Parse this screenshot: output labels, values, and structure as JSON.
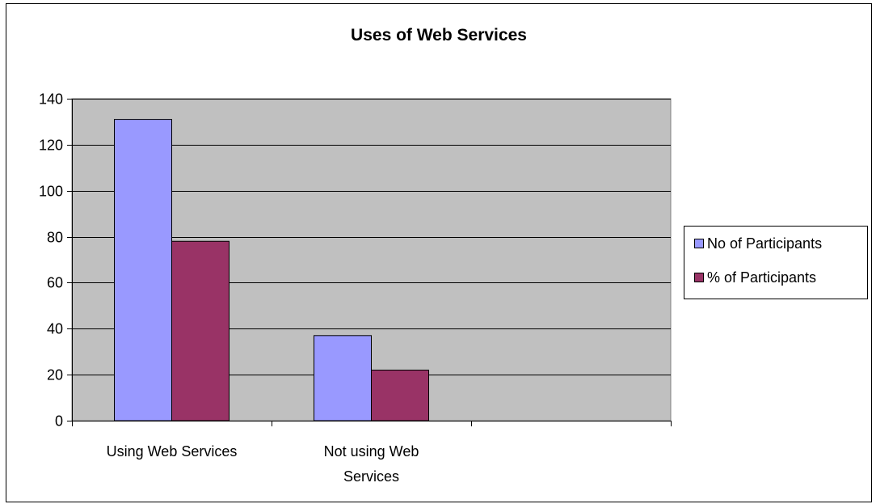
{
  "chart_data": {
    "type": "bar",
    "title": "Uses of Web Services",
    "xlabel": "",
    "ylabel": "",
    "categories": [
      [
        "Using Web Services"
      ],
      [
        "Not using Web",
        "Services"
      ],
      [
        ""
      ]
    ],
    "series": [
      {
        "name": "No of Participants",
        "color": "#9999ff",
        "values": [
          131,
          37,
          null
        ]
      },
      {
        "name": "% of Participants",
        "color": "#993366",
        "values": [
          78,
          22,
          null
        ]
      }
    ],
    "ylim": [
      0,
      140
    ],
    "yticks": [
      0,
      20,
      40,
      60,
      80,
      100,
      120,
      140
    ],
    "grid": true,
    "plot_background": "#c0c0c0",
    "legend_position": "right"
  }
}
